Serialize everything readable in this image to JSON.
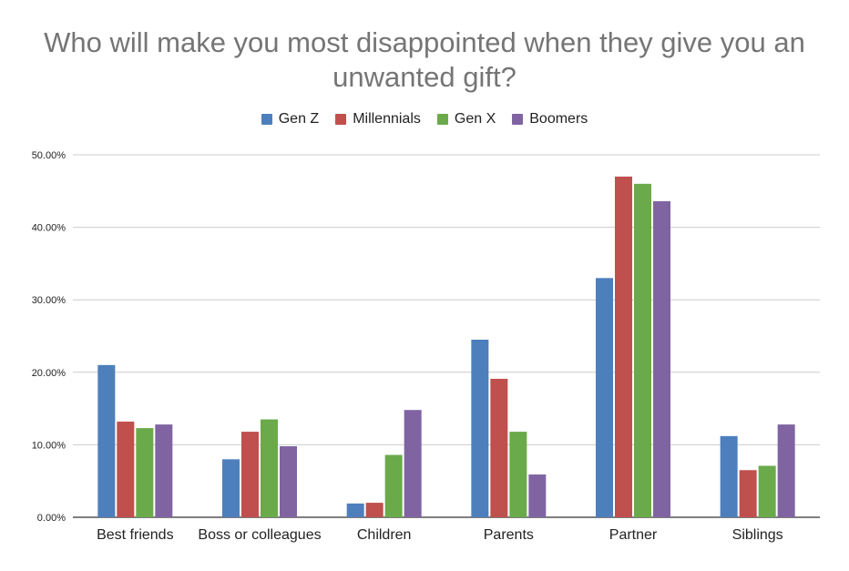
{
  "chart_data": {
    "type": "bar",
    "title": "Who will make you most disappointed when they give you an unwanted gift?",
    "categories": [
      "Best friends",
      "Boss or colleagues",
      "Children",
      "Parents",
      "Partner",
      "Siblings"
    ],
    "series": [
      {
        "name": "Gen Z",
        "color": "#4e7fbd",
        "values": [
          21.0,
          8.0,
          1.9,
          24.5,
          33.0,
          11.2
        ]
      },
      {
        "name": "Millennials",
        "color": "#c0504d",
        "values": [
          13.2,
          11.8,
          2.0,
          19.1,
          47.0,
          6.5
        ]
      },
      {
        "name": "Gen X",
        "color": "#6aaa4b",
        "values": [
          12.3,
          13.5,
          8.6,
          11.8,
          46.0,
          7.1
        ]
      },
      {
        "name": "Boomers",
        "color": "#8064a2",
        "values": [
          12.8,
          9.8,
          14.8,
          5.9,
          43.6,
          12.8
        ]
      }
    ],
    "ylim": [
      0,
      50
    ],
    "yticks": [
      0,
      10,
      20,
      30,
      40,
      50
    ],
    "ytick_labels": [
      "0.00%",
      "10.00%",
      "20.00%",
      "30.00%",
      "40.00%",
      "50.00%"
    ],
    "xlabel": "",
    "ylabel": "",
    "grid": true,
    "legend_position": "top"
  }
}
